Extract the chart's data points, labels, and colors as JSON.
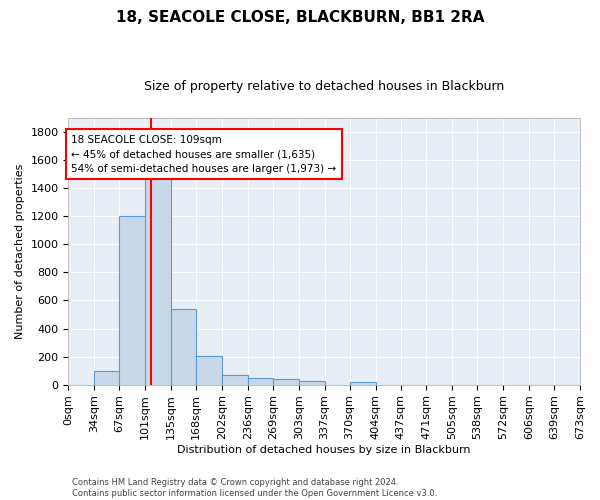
{
  "title": "18, SEACOLE CLOSE, BLACKBURN, BB1 2RA",
  "subtitle": "Size of property relative to detached houses in Blackburn",
  "xlabel": "Distribution of detached houses by size in Blackburn",
  "ylabel": "Number of detached properties",
  "bar_color": "#c8d8e8",
  "bar_edge_color": "#5b9bd5",
  "background_color": "#e8eef5",
  "grid_color": "white",
  "red_line_x": 109,
  "annotation_line1": "18 SEACOLE CLOSE: 109sqm",
  "annotation_line2": "← 45% of detached houses are smaller (1,635)",
  "annotation_line3": "54% of semi-detached houses are larger (1,973) →",
  "annotation_box_color": "white",
  "annotation_box_edge": "red",
  "footer": "Contains HM Land Registry data © Crown copyright and database right 2024.\nContains public sector information licensed under the Open Government Licence v3.0.",
  "bin_edges": [
    0,
    34,
    67,
    101,
    135,
    168,
    202,
    236,
    269,
    303,
    337,
    370,
    404,
    437,
    471,
    505,
    538,
    572,
    606,
    639,
    673
  ],
  "bar_heights": [
    0,
    95,
    1200,
    1480,
    540,
    205,
    70,
    48,
    38,
    30,
    0,
    18,
    0,
    0,
    0,
    0,
    0,
    0,
    0,
    0
  ],
  "ylim": [
    0,
    1900
  ],
  "yticks": [
    0,
    200,
    400,
    600,
    800,
    1000,
    1200,
    1400,
    1600,
    1800
  ],
  "title_fontsize": 11,
  "subtitle_fontsize": 9,
  "ylabel_fontsize": 8,
  "xlabel_fontsize": 8,
  "tick_fontsize": 8,
  "footer_fontsize": 6
}
